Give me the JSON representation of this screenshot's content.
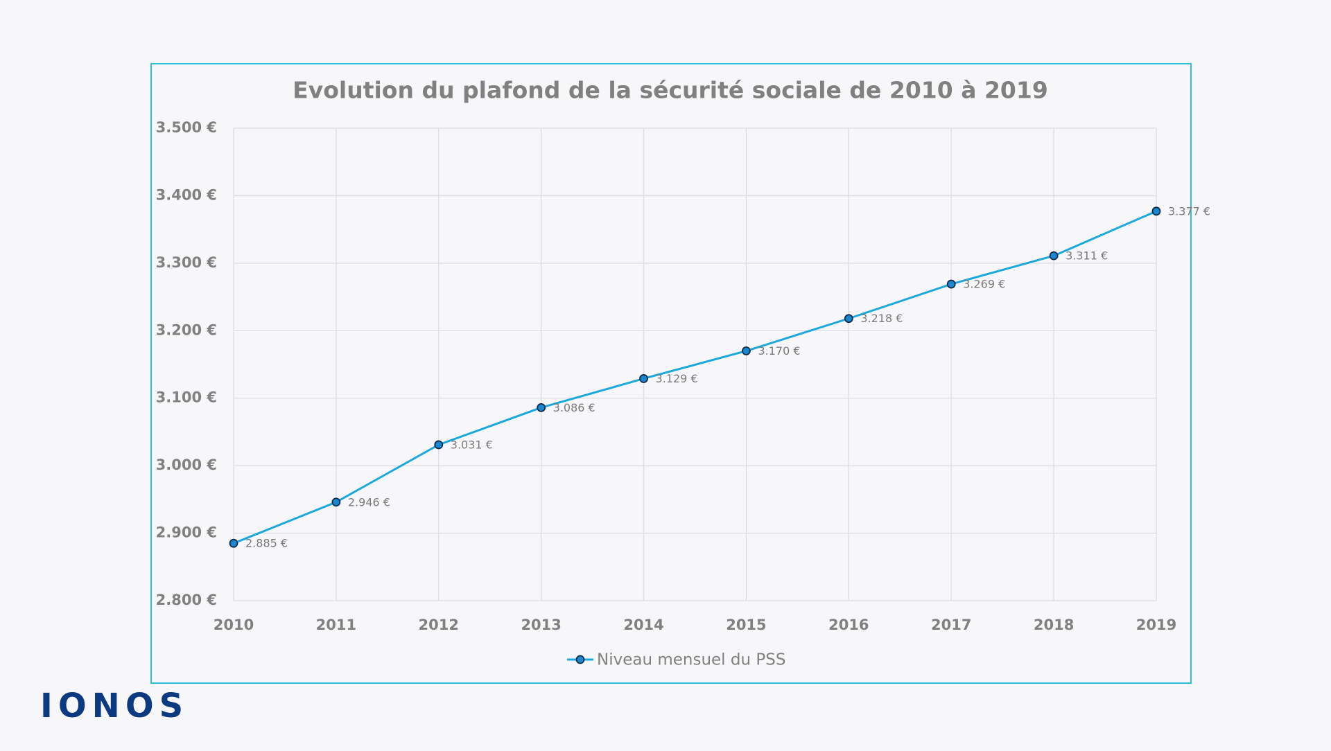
{
  "chart_data": {
    "type": "line",
    "title": "Evolution du plafond de la sécurité sociale de 2010 à 2019",
    "categories": [
      "2010",
      "2011",
      "2012",
      "2013",
      "2014",
      "2015",
      "2016",
      "2017",
      "2018",
      "2019"
    ],
    "series": [
      {
        "name": "Niveau mensuel du PSS",
        "color": "#1ba8dc",
        "values": [
          2885,
          2946,
          3031,
          3086,
          3129,
          3170,
          3218,
          3269,
          3311,
          3377
        ],
        "value_labels": [
          "2.885 €",
          "2.946 €",
          "3.031 €",
          "3.086 €",
          "3.129 €",
          "3.170 €",
          "3.218 €",
          "3.269 €",
          "3.311 €",
          "3.377 €"
        ]
      }
    ],
    "ylim": [
      2800,
      3500
    ],
    "yticks": [
      {
        "value": 2800,
        "label": "2.800 €"
      },
      {
        "value": 2900,
        "label": "2.900 €"
      },
      {
        "value": 3000,
        "label": "3.000 €"
      },
      {
        "value": 3100,
        "label": "3.100 €"
      },
      {
        "value": 3200,
        "label": "3.200 €"
      },
      {
        "value": 3300,
        "label": "3.300 €"
      },
      {
        "value": 3400,
        "label": "3.400 €"
      },
      {
        "value": 3500,
        "label": "3.500 €"
      }
    ],
    "grid": true,
    "legend": "bottom"
  },
  "logo": "IONOS"
}
